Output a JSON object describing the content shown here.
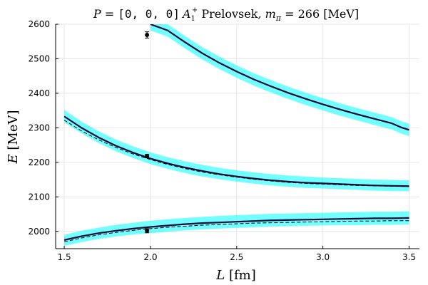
{
  "chart_data": {
    "type": "line",
    "title": {
      "main": "P = [0, 0, 0] A1+ Prelovsek, mπ = 266 [MeV]",
      "momentum_label": "P = ",
      "momentum_value": "[0, 0, 0]",
      "irrep": "A",
      "irrep_sub": "1",
      "irrep_sup": "+",
      "author": " Prelovsek",
      "mass_label": ", m",
      "mass_sub": "π",
      "mass_value": " = 266 [MeV]"
    },
    "xlabel": "L [fm]",
    "ylabel": "E [MeV]",
    "xlim": [
      1.45,
      3.56
    ],
    "ylim": [
      1950,
      2600
    ],
    "xticks": [
      1.5,
      2.0,
      2.5,
      3.0,
      3.5
    ],
    "xtick_labels": [
      "1.5",
      "2.0",
      "2.5",
      "3.0",
      "3.5"
    ],
    "yticks": [
      2000,
      2100,
      2200,
      2300,
      2400,
      2500,
      2600
    ],
    "ytick_labels": [
      "2000",
      "2100",
      "2200",
      "2300",
      "2400",
      "2500",
      "2600"
    ],
    "grid": true,
    "band_color": "#00ffff",
    "band_opacity": 0.55,
    "line_color": "#0b0b3b",
    "dashed_color": "#000000",
    "point_color": "#000000",
    "x": [
      1.5,
      1.6,
      1.7,
      1.8,
      1.9,
      2.0,
      2.1,
      2.2,
      2.3,
      2.4,
      2.5,
      2.6,
      2.7,
      2.8,
      2.9,
      3.0,
      3.1,
      3.2,
      3.3,
      3.4,
      3.5
    ],
    "series": [
      {
        "name": "level-1-fit",
        "values": [
          1975,
          1986,
          1995,
          2002,
          2008,
          2013,
          2017,
          2021,
          2024,
          2026,
          2028,
          2030,
          2032,
          2033,
          2034,
          2035,
          2036,
          2037,
          2038,
          2038,
          2039
        ],
        "band_lower": [
          1958,
          1969,
          1978,
          1985,
          1991,
          1995,
          1999,
          2003,
          2006,
          2008,
          2010,
          2012,
          2014,
          2015,
          2016,
          2017,
          2018,
          2018,
          2019,
          2019,
          2020
        ],
        "band_upper": [
          1990,
          2002,
          2011,
          2019,
          2025,
          2031,
          2035,
          2039,
          2042,
          2045,
          2047,
          2049,
          2051,
          2052,
          2053,
          2054,
          2055,
          2056,
          2057,
          2057,
          2058
        ],
        "dashed": [
          1970,
          1981,
          1990,
          1997,
          2003,
          2008,
          2012,
          2015,
          2018,
          2020,
          2022,
          2024,
          2025,
          2026,
          2027,
          2028,
          2029,
          2030,
          2030,
          2031,
          2031
        ]
      },
      {
        "name": "level-2-fit",
        "values": [
          2333,
          2300,
          2272,
          2248,
          2228,
          2211,
          2197,
          2185,
          2175,
          2166,
          2159,
          2153,
          2148,
          2144,
          2141,
          2139,
          2137,
          2135,
          2133,
          2132,
          2131
        ],
        "band_lower": [
          2316,
          2284,
          2256,
          2232,
          2212,
          2195,
          2181,
          2169,
          2159,
          2151,
          2144,
          2138,
          2133,
          2129,
          2126,
          2124,
          2122,
          2120,
          2118,
          2117,
          2116
        ],
        "band_upper": [
          2352,
          2318,
          2290,
          2266,
          2246,
          2229,
          2215,
          2203,
          2193,
          2184,
          2177,
          2171,
          2166,
          2162,
          2159,
          2156,
          2154,
          2152,
          2150,
          2149,
          2148
        ],
        "dashed": [
          2322,
          2291,
          2265,
          2243,
          2224,
          2208,
          2194,
          2182,
          2172,
          2164,
          2157,
          2151,
          2146,
          2142,
          2139,
          2137,
          2135,
          2133,
          2132,
          2131,
          2130
        ]
      },
      {
        "name": "level-3-fit",
        "x_start": 2.05,
        "values": [
          2600,
          2582,
          2548,
          2516,
          2488,
          2463,
          2440,
          2420,
          2401,
          2384,
          2368,
          2353,
          2339,
          2326,
          2313,
          2302,
          2294
        ],
        "band_lower": [
          2582,
          2564,
          2530,
          2498,
          2470,
          2445,
          2422,
          2402,
          2383,
          2366,
          2350,
          2335,
          2321,
          2308,
          2295,
          2284,
          2276
        ],
        "band_upper": [
          2618,
          2600,
          2566,
          2534,
          2506,
          2481,
          2458,
          2438,
          2419,
          2402,
          2386,
          2371,
          2357,
          2344,
          2331,
          2320,
          2312
        ],
        "x_values": [
          2.0,
          2.1,
          2.2,
          2.3,
          2.4,
          2.5,
          2.6,
          2.7,
          2.8,
          2.9,
          3.0,
          3.1,
          3.2,
          3.3,
          3.4,
          3.45,
          3.5
        ]
      }
    ],
    "points": [
      {
        "x": 1.98,
        "y": 2002,
        "err": 6
      },
      {
        "x": 1.98,
        "y": 2218,
        "err": 5
      },
      {
        "x": 1.98,
        "y": 2569,
        "err": 9
      }
    ]
  }
}
